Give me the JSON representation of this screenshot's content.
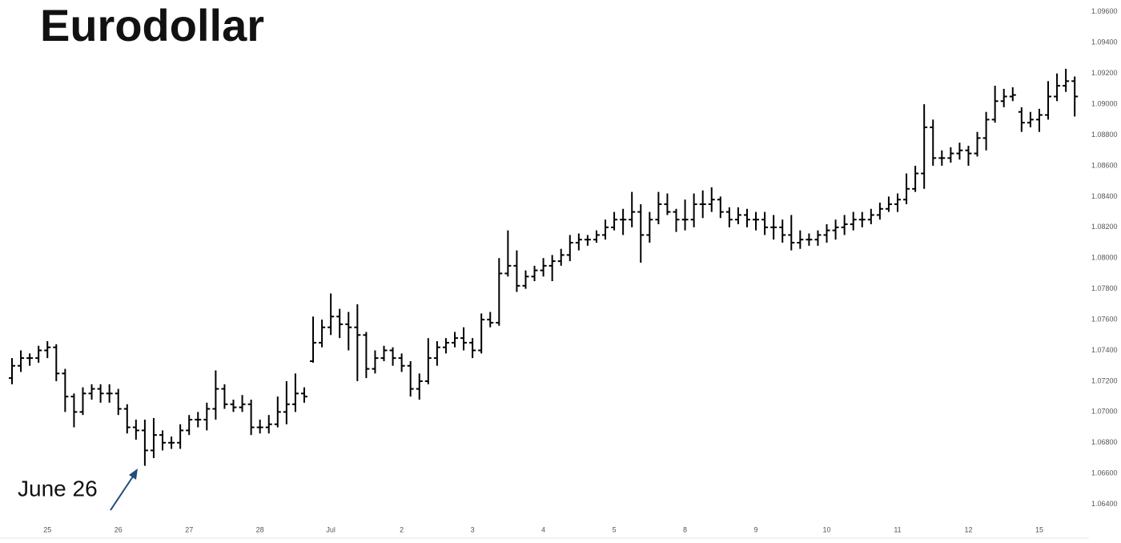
{
  "chart_data": {
    "type": "ohlc",
    "title": "Eurodollar",
    "annotation": "June 26",
    "color": "#000000",
    "categories": [
      null,
      null,
      null,
      null,
      "25",
      null,
      null,
      null,
      null,
      null,
      null,
      null,
      "26",
      null,
      null,
      null,
      null,
      null,
      null,
      null,
      "27",
      null,
      null,
      null,
      null,
      null,
      null,
      null,
      "28",
      null,
      null,
      null,
      null,
      null,
      null,
      null,
      "Jul",
      null,
      null,
      null,
      null,
      null,
      null,
      null,
      "2",
      null,
      null,
      null,
      null,
      null,
      null,
      null,
      "3",
      null,
      null,
      null,
      null,
      null,
      null,
      null,
      "4",
      null,
      null,
      null,
      null,
      null,
      null,
      null,
      "5",
      null,
      null,
      null,
      null,
      null,
      null,
      null,
      "8",
      null,
      null,
      null,
      null,
      null,
      null,
      null,
      "9",
      null,
      null,
      null,
      null,
      null,
      null,
      null,
      "10",
      null,
      null,
      null,
      null,
      null,
      null,
      null,
      "11",
      null,
      null,
      null,
      null,
      null,
      null,
      null,
      "12",
      null,
      null,
      null,
      null,
      null,
      null,
      null,
      "15",
      null,
      null,
      null,
      null
    ],
    "open": [
      1.0722,
      1.073,
      1.0735,
      1.0735,
      1.074,
      1.0742,
      1.0725,
      1.071,
      1.07,
      1.0712,
      1.0715,
      1.0712,
      1.0712,
      1.0702,
      1.069,
      1.0688,
      1.0675,
      1.0685,
      1.068,
      1.068,
      1.0688,
      1.0695,
      1.0695,
      1.0702,
      1.0715,
      1.0705,
      1.0703,
      1.0705,
      1.069,
      1.069,
      1.0692,
      1.07,
      1.0705,
      1.0712,
      1.0733,
      1.0745,
      1.0755,
      1.0762,
      1.0757,
      1.0755,
      1.075,
      1.0728,
      1.0735,
      1.074,
      1.0735,
      1.073,
      1.0715,
      1.072,
      1.0735,
      1.0742,
      1.0745,
      1.0748,
      1.0745,
      1.074,
      1.076,
      1.0758,
      1.079,
      1.0795,
      1.0782,
      1.0788,
      1.0792,
      1.0795,
      1.0798,
      1.0802,
      1.081,
      1.0812,
      1.0812,
      1.0815,
      1.082,
      1.0825,
      1.0825,
      1.083,
      1.0815,
      1.0825,
      1.0835,
      1.083,
      1.0825,
      1.0825,
      1.0835,
      1.0835,
      1.0838,
      1.083,
      1.0825,
      1.0828,
      1.0825,
      1.0825,
      1.082,
      1.082,
      1.0815,
      1.081,
      1.0812,
      1.0812,
      1.0815,
      1.0818,
      1.082,
      1.0822,
      1.0825,
      1.0825,
      1.0828,
      1.0832,
      1.0835,
      1.0838,
      1.0845,
      1.0855,
      1.0885,
      1.0865,
      1.0865,
      1.0868,
      1.087,
      1.0868,
      1.0878,
      1.089,
      1.0902,
      1.0905,
      1.0895,
      1.0888,
      1.089,
      1.0893,
      1.0905,
      1.0912,
      1.0915
    ],
    "high": [
      1.0735,
      1.074,
      1.0738,
      1.0743,
      1.0746,
      1.0744,
      1.0728,
      1.0712,
      1.0716,
      1.0718,
      1.0718,
      1.0718,
      1.0715,
      1.0705,
      1.0695,
      1.0695,
      1.0696,
      1.0688,
      1.0684,
      1.0692,
      1.0698,
      1.07,
      1.0706,
      1.0727,
      1.0718,
      1.0708,
      1.0711,
      1.0708,
      1.0695,
      1.0698,
      1.071,
      1.072,
      1.0725,
      1.0716,
      1.0762,
      1.076,
      1.0777,
      1.0767,
      1.0765,
      1.077,
      1.0752,
      1.074,
      1.0743,
      1.0742,
      1.0738,
      1.0733,
      1.0725,
      1.0748,
      1.0746,
      1.0748,
      1.0752,
      1.0755,
      1.0748,
      1.0764,
      1.0765,
      1.08,
      1.0818,
      1.0805,
      1.0792,
      1.0795,
      1.08,
      1.0802,
      1.0806,
      1.0815,
      1.0816,
      1.0815,
      1.0818,
      1.0825,
      1.083,
      1.0832,
      1.0843,
      1.0835,
      1.083,
      1.0843,
      1.0842,
      1.0832,
      1.0838,
      1.0842,
      1.0844,
      1.0846,
      1.084,
      1.0833,
      1.0833,
      1.0832,
      1.083,
      1.083,
      1.0828,
      1.0825,
      1.0828,
      1.0818,
      1.0816,
      1.0818,
      1.0822,
      1.0825,
      1.0828,
      1.083,
      1.083,
      1.0832,
      1.0836,
      1.084,
      1.0842,
      1.0855,
      1.086,
      1.09,
      1.089,
      1.087,
      1.0872,
      1.0875,
      1.0873,
      1.0882,
      1.0895,
      1.0912,
      1.091,
      1.0911,
      1.0898,
      1.0895,
      1.0897,
      1.0915,
      1.092,
      1.0923,
      1.0918
    ],
    "low": [
      1.0718,
      1.0726,
      1.073,
      1.0732,
      1.0735,
      1.072,
      1.07,
      1.069,
      1.0698,
      1.0708,
      1.0706,
      1.0706,
      1.0698,
      1.0686,
      1.0682,
      1.0665,
      1.067,
      1.0675,
      1.0676,
      1.0676,
      1.0685,
      1.069,
      1.0688,
      1.0695,
      1.0702,
      1.07,
      1.07,
      1.0685,
      1.0686,
      1.0686,
      1.069,
      1.0692,
      1.07,
      1.0706,
      1.0732,
      1.0742,
      1.075,
      1.0748,
      1.074,
      1.072,
      1.0722,
      1.0725,
      1.0733,
      1.073,
      1.0726,
      1.071,
      1.0708,
      1.0718,
      1.073,
      1.0738,
      1.0742,
      1.074,
      1.0735,
      1.0738,
      1.0755,
      1.0756,
      1.0788,
      1.0778,
      1.078,
      1.0785,
      1.0788,
      1.0785,
      1.0795,
      1.0798,
      1.0805,
      1.0808,
      1.081,
      1.0812,
      1.0818,
      1.0815,
      1.082,
      1.0797,
      1.081,
      1.0822,
      1.0828,
      1.0817,
      1.0818,
      1.082,
      1.0826,
      1.083,
      1.0826,
      1.082,
      1.0822,
      1.082,
      1.0818,
      1.0815,
      1.0812,
      1.081,
      1.0805,
      1.0806,
      1.0808,
      1.0808,
      1.081,
      1.0812,
      1.0815,
      1.0818,
      1.082,
      1.0822,
      1.0825,
      1.083,
      1.083,
      1.0835,
      1.0843,
      1.0845,
      1.086,
      1.086,
      1.0862,
      1.0864,
      1.086,
      1.0866,
      1.087,
      1.0888,
      1.0898,
      1.0902,
      1.0882,
      1.0885,
      1.0882,
      1.089,
      1.0902,
      1.0908,
      1.0892
    ],
    "close": [
      1.073,
      1.0735,
      1.0735,
      1.074,
      1.0742,
      1.0725,
      1.071,
      1.07,
      1.0712,
      1.0715,
      1.0712,
      1.0712,
      1.0702,
      1.069,
      1.0688,
      1.0675,
      1.0685,
      1.068,
      1.068,
      1.0688,
      1.0695,
      1.0695,
      1.0702,
      1.0715,
      1.0705,
      1.0703,
      1.0705,
      1.069,
      1.069,
      1.0692,
      1.07,
      1.0705,
      1.0712,
      1.071,
      1.0745,
      1.0755,
      1.0762,
      1.0757,
      1.0755,
      1.075,
      1.0728,
      1.0735,
      1.074,
      1.0735,
      1.073,
      1.0715,
      1.072,
      1.0735,
      1.0742,
      1.0745,
      1.0748,
      1.0745,
      1.074,
      1.076,
      1.0758,
      1.079,
      1.0795,
      1.0782,
      1.0788,
      1.0792,
      1.0795,
      1.0798,
      1.0802,
      1.081,
      1.0812,
      1.0812,
      1.0815,
      1.082,
      1.0825,
      1.0825,
      1.083,
      1.0815,
      1.0825,
      1.0835,
      1.083,
      1.0825,
      1.0825,
      1.0835,
      1.0835,
      1.0838,
      1.083,
      1.0825,
      1.0828,
      1.0825,
      1.0825,
      1.082,
      1.082,
      1.0815,
      1.081,
      1.0812,
      1.0812,
      1.0815,
      1.0818,
      1.082,
      1.0822,
      1.0825,
      1.0825,
      1.0828,
      1.0832,
      1.0835,
      1.0838,
      1.0845,
      1.0855,
      1.0885,
      1.0865,
      1.0865,
      1.0868,
      1.087,
      1.0868,
      1.0878,
      1.089,
      1.0902,
      1.0905,
      1.0906,
      1.0888,
      1.089,
      1.0893,
      1.0905,
      1.0912,
      1.0915,
      1.0905
    ],
    "ylim": [
      1.0632,
      1.0962
    ],
    "yticks": [
      {
        "value": 1.064,
        "label": "1.06400"
      },
      {
        "value": 1.066,
        "label": "1.06600"
      },
      {
        "value": 1.068,
        "label": "1.06800"
      },
      {
        "value": 1.07,
        "label": "1.07000"
      },
      {
        "value": 1.072,
        "label": "1.07200"
      },
      {
        "value": 1.074,
        "label": "1.07400"
      },
      {
        "value": 1.076,
        "label": "1.07600"
      },
      {
        "value": 1.078,
        "label": "1.07800"
      },
      {
        "value": 1.08,
        "label": "1.08000"
      },
      {
        "value": 1.082,
        "label": "1.08200"
      },
      {
        "value": 1.084,
        "label": "1.08400"
      },
      {
        "value": 1.086,
        "label": "1.08600"
      },
      {
        "value": 1.088,
        "label": "1.08800"
      },
      {
        "value": 1.09,
        "label": "1.09000"
      },
      {
        "value": 1.092,
        "label": "1.09200"
      },
      {
        "value": 1.094,
        "label": "1.09400"
      },
      {
        "value": 1.096,
        "label": "1.09600"
      }
    ],
    "grid": false
  }
}
